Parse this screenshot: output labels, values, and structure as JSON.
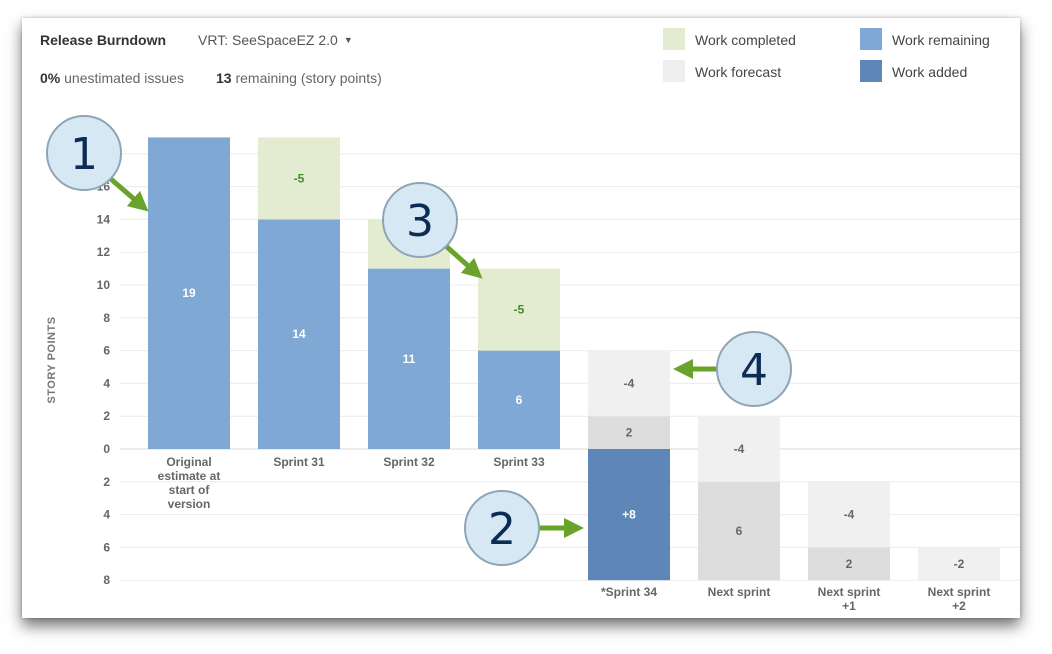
{
  "header": {
    "title": "Release Burndown",
    "version_select": "VRT: SeeSpaceEZ 2.0",
    "unestimated_pct": "0%",
    "unestimated_label": "unestimated issues",
    "remaining_count": "13",
    "remaining_label": "remaining (story points)"
  },
  "legend": [
    {
      "label": "Work completed",
      "color": "#e3ecd0"
    },
    {
      "label": "Work remaining",
      "color": "#7fa8d4"
    },
    {
      "label": "Work forecast",
      "color": "#eeeeee"
    },
    {
      "label": "Work added",
      "color": "#5e87b8"
    }
  ],
  "callouts": [
    "1",
    "2",
    "3",
    "4"
  ],
  "chart_data": {
    "type": "bar",
    "ylabel": "STORY POINTS",
    "yticks_up": [
      "16",
      "14",
      "12",
      "10",
      "8",
      "6",
      "4",
      "2",
      "0"
    ],
    "yticks_down": [
      "2",
      "4",
      "6",
      "8"
    ],
    "categories": [
      "Original estimate at start of version",
      "Sprint 31",
      "Sprint 32",
      "Sprint 33",
      "*Sprint 34",
      "Next sprint",
      "Next sprint +1",
      "Next sprint +2"
    ],
    "category_lines": [
      [
        "Original",
        "estimate at",
        "start of",
        "version"
      ],
      [
        "Sprint 31"
      ],
      [
        "Sprint 32"
      ],
      [
        "Sprint 33"
      ],
      [
        "*Sprint 34"
      ],
      [
        "Next sprint"
      ],
      [
        "Next sprint",
        "+1"
      ],
      [
        "Next sprint",
        "+2"
      ]
    ],
    "segments": [
      {
        "category": 0,
        "kind": "remaining",
        "from": 0,
        "to": 19,
        "label": "19"
      },
      {
        "category": 1,
        "kind": "remaining",
        "from": 0,
        "to": 14,
        "label": "14"
      },
      {
        "category": 1,
        "kind": "completed",
        "from": 14,
        "to": 19,
        "label": "-5"
      },
      {
        "category": 2,
        "kind": "remaining",
        "from": 0,
        "to": 11,
        "label": "11"
      },
      {
        "category": 2,
        "kind": "completed",
        "from": 11,
        "to": 14,
        "label": ""
      },
      {
        "category": 3,
        "kind": "remaining",
        "from": 0,
        "to": 6,
        "label": "6"
      },
      {
        "category": 3,
        "kind": "completed",
        "from": 6,
        "to": 11,
        "label": "-5"
      },
      {
        "category": 4,
        "kind": "added",
        "from": -8,
        "to": 0,
        "label": "+8"
      },
      {
        "category": 4,
        "kind": "forecast_remaining",
        "from": 0,
        "to": 2,
        "label": "2"
      },
      {
        "category": 4,
        "kind": "forecast",
        "from": 2,
        "to": 6,
        "label": "-4"
      },
      {
        "category": 5,
        "kind": "forecast_remaining",
        "from": -8,
        "to": -2,
        "label": "6"
      },
      {
        "category": 5,
        "kind": "forecast",
        "from": -2,
        "to": 2,
        "label": "-4"
      },
      {
        "category": 6,
        "kind": "forecast_remaining",
        "from": -8,
        "to": -6,
        "label": "2"
      },
      {
        "category": 6,
        "kind": "forecast",
        "from": -6,
        "to": -2,
        "label": "-4"
      },
      {
        "category": 7,
        "kind": "forecast",
        "from": -8,
        "to": -6,
        "label": "-2"
      }
    ],
    "ylim": [
      -8,
      19
    ],
    "colors": {
      "remaining": "#7fa8d4",
      "completed": "#e3ecd0",
      "added": "#5e87b8",
      "forecast": "#f0f0f0",
      "forecast_remaining": "#dddddd",
      "label_light": "#ffffff",
      "label_green": "#3f8f2a",
      "label_gray": "#666666"
    }
  }
}
